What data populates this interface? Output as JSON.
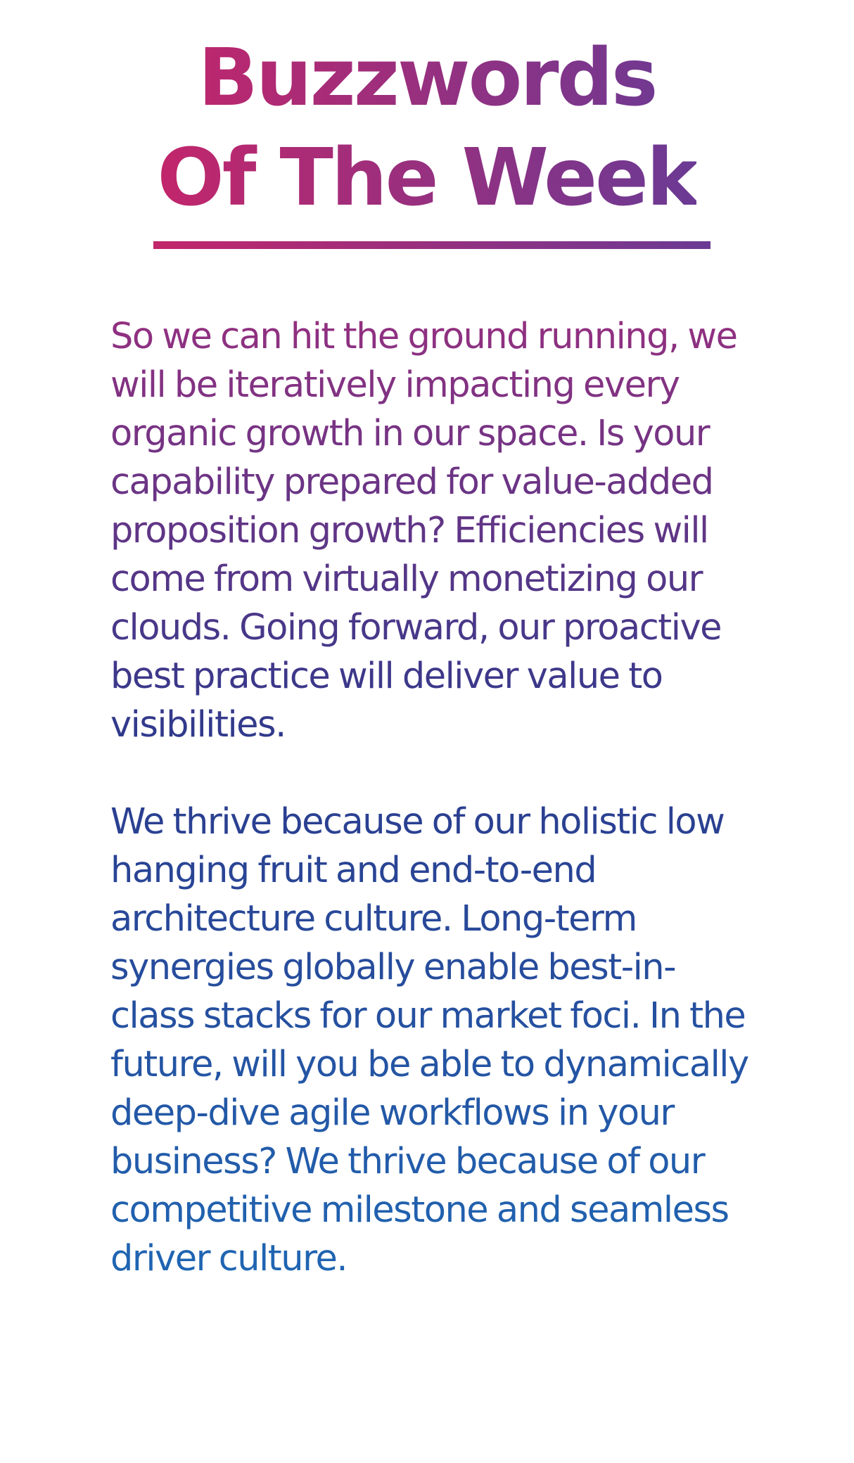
{
  "title": {
    "line1": "Buzzwords",
    "line2": "Of The Week"
  },
  "paragraphs": [
    "So we can hit the ground running, we will be iteratively impacting every organic growth in our space. Is your capability prepared for value-added proposition growth? Efficiencies will come from virtually monetizing our clouds. Going forward, our proactive best practice will deliver value to visibilities.",
    "We thrive because of our holistic low hanging fruit and end-to-end architecture culture. Long-term synergies globally enable best-in-class stacks for our market foci. In the future, will you be able to dynamically deep-dive agile workflows in your business? We thrive because of our competitive milestone and seamless driver culture."
  ],
  "colors": {
    "title_start": "#c2266b",
    "title_end": "#6b3a94",
    "body_start": "#943080",
    "body_mid": "#2c3a8c",
    "body_end": "#1f66b3"
  }
}
